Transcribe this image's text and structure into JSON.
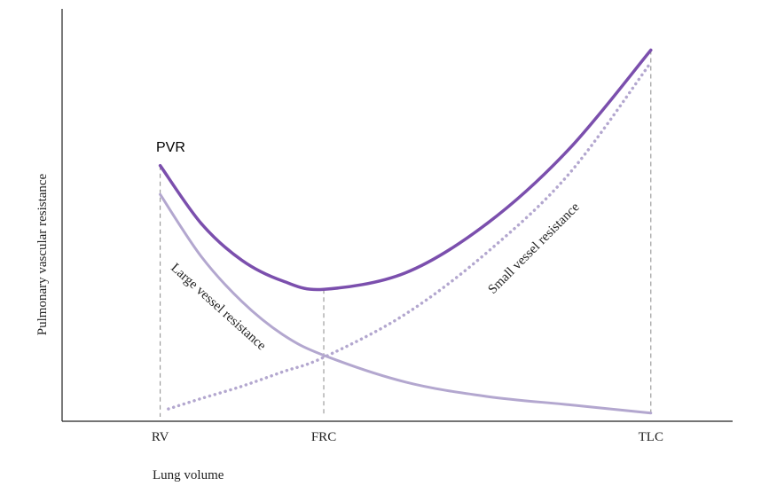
{
  "chart_data": {
    "type": "line",
    "xlabel": "Lung volume",
    "ylabel": "Pulmonary vascular resistance",
    "x_ticks": [
      "RV",
      "FRC",
      "TLC"
    ],
    "x_tick_positions": [
      0,
      1,
      3
    ],
    "xlim": [
      -0.6,
      3.5
    ],
    "ylim": [
      0,
      10
    ],
    "grid": false,
    "series": [
      {
        "name": "PVR",
        "color": "#7b4fad",
        "style": "solid",
        "x": [
          0,
          0.25,
          0.5,
          0.75,
          1,
          1.5,
          2,
          2.5,
          3
        ],
        "y": [
          6.2,
          4.8,
          3.9,
          3.4,
          3.2,
          3.6,
          4.8,
          6.6,
          9.0
        ]
      },
      {
        "name": "Large vessel resistance",
        "color": "#b3a7cf",
        "style": "solid",
        "x": [
          0,
          0.25,
          0.5,
          0.75,
          1,
          1.5,
          2,
          2.5,
          3
        ],
        "y": [
          5.5,
          4.0,
          2.9,
          2.1,
          1.6,
          0.95,
          0.6,
          0.4,
          0.2
        ]
      },
      {
        "name": "Small vessel resistance",
        "color": "#b3a7cf",
        "style": "dotted",
        "x": [
          0.05,
          0.25,
          0.5,
          0.75,
          1,
          1.5,
          2,
          2.5,
          3
        ],
        "y": [
          0.3,
          0.55,
          0.85,
          1.2,
          1.55,
          2.6,
          4.1,
          6.0,
          8.7
        ]
      }
    ],
    "guide_lines": [
      {
        "x": 0,
        "y_top": 6.2
      },
      {
        "x": 1,
        "y_top": 3.2
      },
      {
        "x": 3,
        "y_top": 9.0
      }
    ]
  }
}
